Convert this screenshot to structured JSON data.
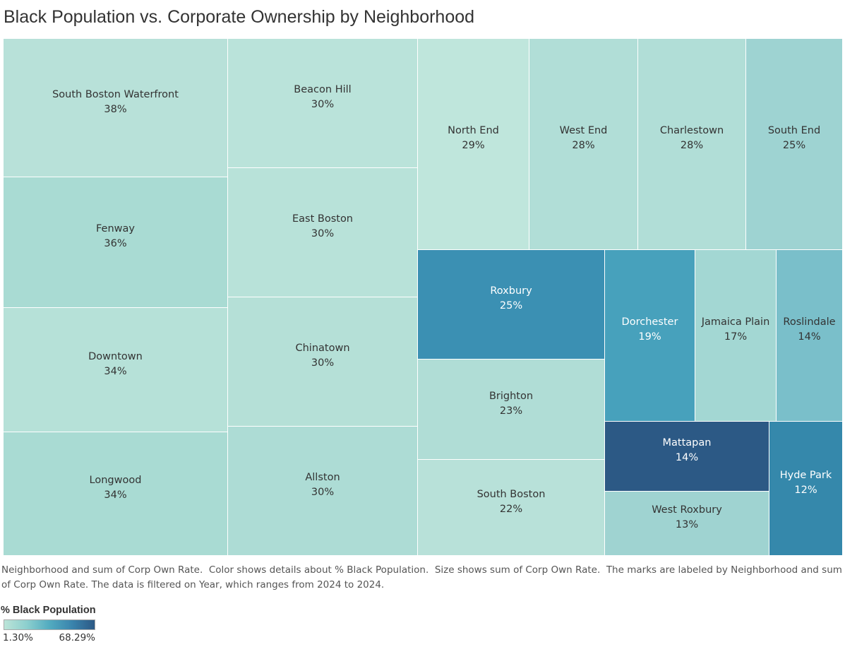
{
  "chart_data": {
    "type": "treemap",
    "title": "Black Population vs. Corporate Ownership by Neighborhood",
    "items": [
      {
        "name": "South Boston Waterfront",
        "value": 38,
        "label": "38%",
        "color": "#b8e1d9"
      },
      {
        "name": "Fenway",
        "value": 36,
        "label": "36%",
        "color": "#a9dbd3"
      },
      {
        "name": "Downtown",
        "value": 34,
        "label": "34%",
        "color": "#b6e1d8"
      },
      {
        "name": "Longwood",
        "value": 34,
        "label": "34%",
        "color": "#a9dbd3"
      },
      {
        "name": "Beacon Hill",
        "value": 30,
        "label": "30%",
        "color": "#bae3da"
      },
      {
        "name": "East Boston",
        "value": 30,
        "label": "30%",
        "color": "#b8e2d9"
      },
      {
        "name": "Chinatown",
        "value": 30,
        "label": "30%",
        "color": "#b5e0d7"
      },
      {
        "name": "Allston",
        "value": 30,
        "label": "30%",
        "color": "#addcd5"
      },
      {
        "name": "North End",
        "value": 29,
        "label": "29%",
        "color": "#bfe6dc"
      },
      {
        "name": "West End",
        "value": 28,
        "label": "28%",
        "color": "#b1ded7"
      },
      {
        "name": "Charlestown",
        "value": 28,
        "label": "28%",
        "color": "#b1ded7"
      },
      {
        "name": "South End",
        "value": 25,
        "label": "25%",
        "color": "#9ed3d2"
      },
      {
        "name": "Roxbury",
        "value": 25,
        "label": "25%",
        "color": "#3b90b3"
      },
      {
        "name": "Brighton",
        "value": 23,
        "label": "23%",
        "color": "#b0ddd6"
      },
      {
        "name": "South Boston",
        "value": 22,
        "label": "22%",
        "color": "#b8e1d9"
      },
      {
        "name": "Dorchester",
        "value": 19,
        "label": "19%",
        "color": "#47a1bc"
      },
      {
        "name": "Jamaica Plain",
        "value": 17,
        "label": "17%",
        "color": "#a3d7d3"
      },
      {
        "name": "Roslindale",
        "value": 14,
        "label": "14%",
        "color": "#7abfca"
      },
      {
        "name": "Mattapan",
        "value": 14,
        "label": "14%",
        "color": "#2c5985"
      },
      {
        "name": "West Roxbury",
        "value": 13,
        "label": "13%",
        "color": "#9fd3d1"
      },
      {
        "name": "Hyde Park",
        "value": 12,
        "label": "12%",
        "color": "#3588ab"
      }
    ],
    "legend": {
      "title": "% Black Population",
      "min_label": "1.30%",
      "max_label": "68.29%",
      "colors": [
        "#bce4d8",
        "#8ccfce",
        "#52abc0",
        "#3a84ad",
        "#2c5985"
      ]
    }
  },
  "caption": "Neighborhood and sum of Corp Own Rate.  Color shows details about % Black Population.  Size shows sum of Corp Own Rate.  The marks are labeled by Neighborhood and sum of Corp Own Rate. The data is filtered on Year, which ranges from 2024 to 2024."
}
